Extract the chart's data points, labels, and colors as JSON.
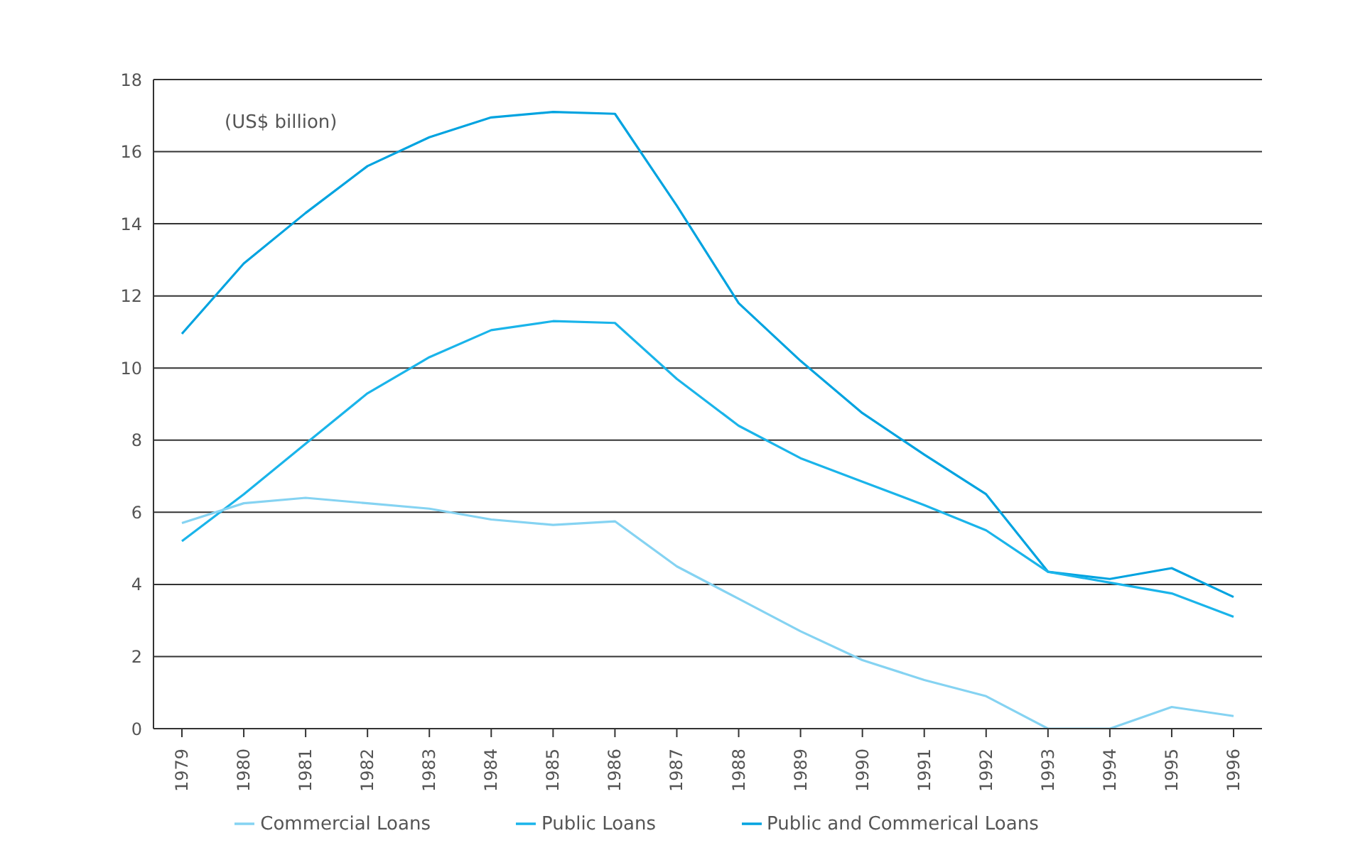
{
  "chart_data": {
    "type": "line",
    "categories": [
      "1979",
      "1980",
      "1981",
      "1982",
      "1983",
      "1984",
      "1985",
      "1986",
      "1987",
      "1988",
      "1989",
      "1990",
      "1991",
      "1992",
      "1993",
      "1994",
      "1995",
      "1996"
    ],
    "series": [
      {
        "name": "Public and Commerical Loans",
        "color": "#00a3e0",
        "values": [
          10.95,
          12.9,
          14.3,
          15.6,
          16.4,
          16.95,
          17.1,
          17.05,
          14.5,
          11.8,
          10.2,
          8.75,
          7.6,
          6.5,
          4.35,
          4.15,
          4.45,
          3.65
        ]
      },
      {
        "name": "Public Loans",
        "color": "#1ab4ea",
        "values": [
          5.2,
          6.5,
          7.9,
          9.3,
          10.3,
          11.05,
          11.3,
          11.25,
          9.7,
          8.4,
          7.5,
          6.85,
          6.2,
          5.5,
          4.35,
          4.05,
          3.75,
          3.1
        ]
      },
      {
        "name": "Commercial Loans",
        "color": "#85d3f2",
        "values": [
          5.7,
          6.25,
          6.4,
          6.25,
          6.1,
          5.8,
          5.65,
          5.75,
          4.5,
          3.6,
          2.7,
          1.9,
          1.35,
          0.9,
          0,
          0,
          0.6,
          0.35
        ]
      }
    ],
    "ylim": [
      0,
      18
    ],
    "yticks": [
      0,
      2,
      4,
      6,
      8,
      10,
      12,
      14,
      16,
      18
    ],
    "grid": "y",
    "legend": "bottom",
    "marker": "none",
    "line_style": "solid",
    "annotations": [
      "(US$ billion)"
    ]
  }
}
